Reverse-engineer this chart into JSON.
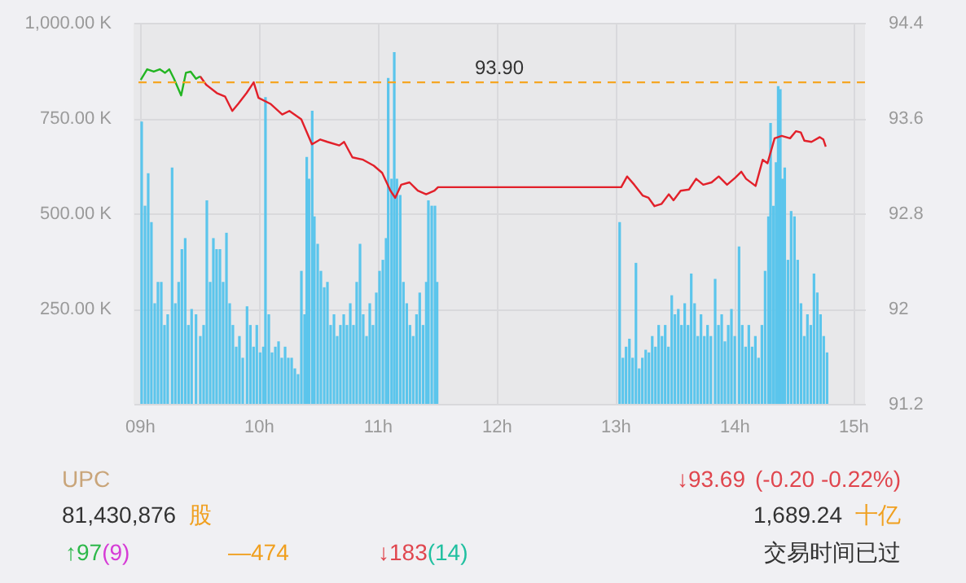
{
  "chart_data": {
    "type": "bar",
    "xlim": [
      8.95,
      15.1
    ],
    "xticks": [
      {
        "value": 9,
        "label": "09h"
      },
      {
        "value": 10,
        "label": "10h"
      },
      {
        "value": 11,
        "label": "11h"
      },
      {
        "value": 12,
        "label": "12h"
      },
      {
        "value": 13,
        "label": "13h"
      },
      {
        "value": 14,
        "label": "14h"
      },
      {
        "value": 15,
        "label": "15h"
      }
    ],
    "ylim": [
      0,
      1000
    ],
    "yticks": [
      {
        "value": 0,
        "label": null
      },
      {
        "value": 250,
        "label": "250.00 K"
      },
      {
        "value": 500,
        "label": "500.00 K"
      },
      {
        "value": 750,
        "label": "750.00 K"
      },
      {
        "value": 1000,
        "label": "1,000.00 K"
      }
    ],
    "y2lim": [
      91.2,
      94.4
    ],
    "y2ticks": [
      91.2,
      92,
      92.8,
      93.6,
      94.4
    ],
    "grid": true,
    "series": [
      {
        "color": "#5bc5ec",
        "x": [
          9.018,
          9.046,
          9.073,
          9.1,
          9.128,
          9.155,
          9.183,
          9.21,
          9.237,
          9.274,
          9.301,
          9.329,
          9.356,
          9.384,
          9.411,
          9.438,
          9.475,
          9.511,
          9.539,
          9.566,
          9.594,
          9.621,
          9.648,
          9.676,
          9.703,
          9.731,
          9.758,
          9.785,
          9.813,
          9.84,
          9.868,
          9.904,
          9.932,
          9.959,
          9.986,
          10.014,
          10.041,
          10.059,
          10.087,
          10.114,
          10.142,
          10.169,
          10.196,
          10.224,
          10.251,
          10.279,
          10.306,
          10.333,
          10.361,
          10.388,
          10.406,
          10.425,
          10.452,
          10.47,
          10.498,
          10.525,
          10.553,
          10.58,
          10.607,
          10.635,
          10.662,
          10.689,
          10.717,
          10.744,
          10.772,
          10.799,
          10.826,
          10.854,
          10.881,
          10.909,
          10.936,
          10.963,
          10.991,
          11.018,
          11.046,
          11.073,
          11.091,
          11.119,
          11.142,
          11.164,
          11.192,
          11.219,
          11.247,
          11.274,
          11.301,
          11.329,
          11.356,
          11.384,
          11.411,
          11.429,
          11.457,
          11.484,
          11.502,
          13.037,
          13.064,
          13.091,
          13.119,
          13.146,
          13.174,
          13.201,
          13.228,
          13.256,
          13.283,
          13.311,
          13.338,
          13.365,
          13.393,
          13.42,
          13.447,
          13.475,
          13.502,
          13.53,
          13.557,
          13.584,
          13.612,
          13.639,
          13.667,
          13.694,
          13.721,
          13.749,
          13.776,
          13.804,
          13.84,
          13.868,
          13.895,
          13.922,
          13.95,
          13.977,
          14.005,
          14.041,
          14.068,
          14.096,
          14.123,
          14.151,
          14.178,
          14.205,
          14.233,
          14.26,
          14.288,
          14.306,
          14.329,
          14.352,
          14.37,
          14.388,
          14.406,
          14.425,
          14.452,
          14.479,
          14.507,
          14.534,
          14.562,
          14.589,
          14.616,
          14.644,
          14.671,
          14.699,
          14.726,
          14.753,
          14.781
        ],
        "values": [
          741,
          520,
          605,
          477,
          264,
          320,
          320,
          207,
          235,
          620,
          264,
          320,
          406,
          435,
          207,
          249,
          235,
          178,
          207,
          534,
          320,
          435,
          406,
          406,
          320,
          449,
          264,
          207,
          150,
          178,
          121,
          256,
          207,
          150,
          207,
          135,
          150,
          805,
          235,
          135,
          150,
          164,
          121,
          150,
          121,
          121,
          93,
          78,
          349,
          235,
          648,
          591,
          769,
          492,
          420,
          349,
          306,
          320,
          207,
          235,
          178,
          207,
          235,
          207,
          264,
          207,
          320,
          420,
          235,
          178,
          264,
          207,
          292,
          349,
          378,
          435,
          855,
          591,
          923,
          591,
          548,
          320,
          264,
          207,
          178,
          235,
          292,
          207,
          320,
          534,
          520,
          520,
          320,
          477,
          121,
          150,
          171,
          121,
          370,
          93,
          121,
          142,
          135,
          178,
          150,
          207,
          178,
          207,
          150,
          285,
          235,
          249,
          207,
          264,
          207,
          342,
          264,
          178,
          235,
          178,
          207,
          178,
          328,
          207,
          235,
          164,
          207,
          249,
          178,
          413,
          207,
          150,
          207,
          150,
          178,
          121,
          207,
          349,
          492,
          737,
          520,
          634,
          834,
          826,
          591,
          620,
          378,
          506,
          492,
          378,
          264,
          178,
          235,
          207,
          342,
          292,
          235,
          178,
          135
        ]
      },
      {
        "type": "line",
        "axis": "y2",
        "color": "#e2202a",
        "x": [
          9.51,
          9.56,
          9.65,
          9.72,
          9.78,
          9.83,
          9.9,
          9.96,
          10.0,
          10.1,
          10.2,
          10.26,
          10.36,
          10.45,
          10.52,
          10.58,
          10.68,
          10.72,
          10.79,
          10.88,
          10.97,
          11.04,
          11.11,
          11.15,
          11.2,
          11.27,
          11.34,
          11.41,
          11.48,
          11.51,
          13.02,
          13.05,
          13.1,
          13.16,
          13.23,
          13.28,
          13.33,
          13.39,
          13.45,
          13.49,
          13.55,
          13.62,
          13.68,
          13.74,
          13.81,
          13.87,
          13.94,
          14.01,
          14.06,
          14.1,
          14.18,
          14.24,
          14.28,
          14.34,
          14.4,
          14.47,
          14.52,
          14.56,
          14.59,
          14.65,
          14.72,
          14.75,
          14.77
        ],
        "values": [
          93.95,
          93.88,
          93.81,
          93.78,
          93.66,
          93.72,
          93.81,
          93.9,
          93.77,
          93.72,
          93.63,
          93.66,
          93.59,
          93.38,
          93.42,
          93.4,
          93.37,
          93.4,
          93.27,
          93.25,
          93.2,
          93.14,
          92.99,
          92.93,
          93.04,
          93.06,
          92.99,
          92.96,
          92.99,
          93.02,
          93.02,
          93.02,
          93.11,
          93.04,
          92.95,
          92.93,
          92.86,
          92.88,
          92.96,
          92.91,
          92.99,
          93.0,
          93.09,
          93.04,
          93.06,
          93.11,
          93.04,
          93.1,
          93.15,
          93.09,
          93.03,
          93.25,
          93.22,
          93.43,
          93.45,
          93.43,
          93.49,
          93.48,
          93.41,
          93.4,
          93.44,
          93.42,
          93.36
        ]
      },
      {
        "type": "line",
        "axis": "y2",
        "color": "#22b522",
        "x": [
          9.01,
          9.064,
          9.12,
          9.17,
          9.215,
          9.25,
          9.29,
          9.35,
          9.39,
          9.43,
          9.475,
          9.51
        ],
        "values": [
          93.92,
          94.01,
          93.99,
          94.01,
          93.98,
          94.01,
          93.93,
          93.79,
          93.98,
          93.99,
          93.93,
          93.95
        ]
      }
    ],
    "ref_lines": [
      {
        "axis": "y2",
        "value": 93.9,
        "label": "93.90",
        "color": "#f5a623",
        "line_style": "dashed"
      }
    ],
    "annotations": [
      "UPC",
      "↓93.69",
      "(-0.20 -0.22%)",
      "81,430,876",
      "股",
      "1,689.24",
      "十亿",
      "↑97",
      "(9)",
      "—474",
      "↓183",
      "(14)",
      "交易时间已过"
    ]
  }
}
